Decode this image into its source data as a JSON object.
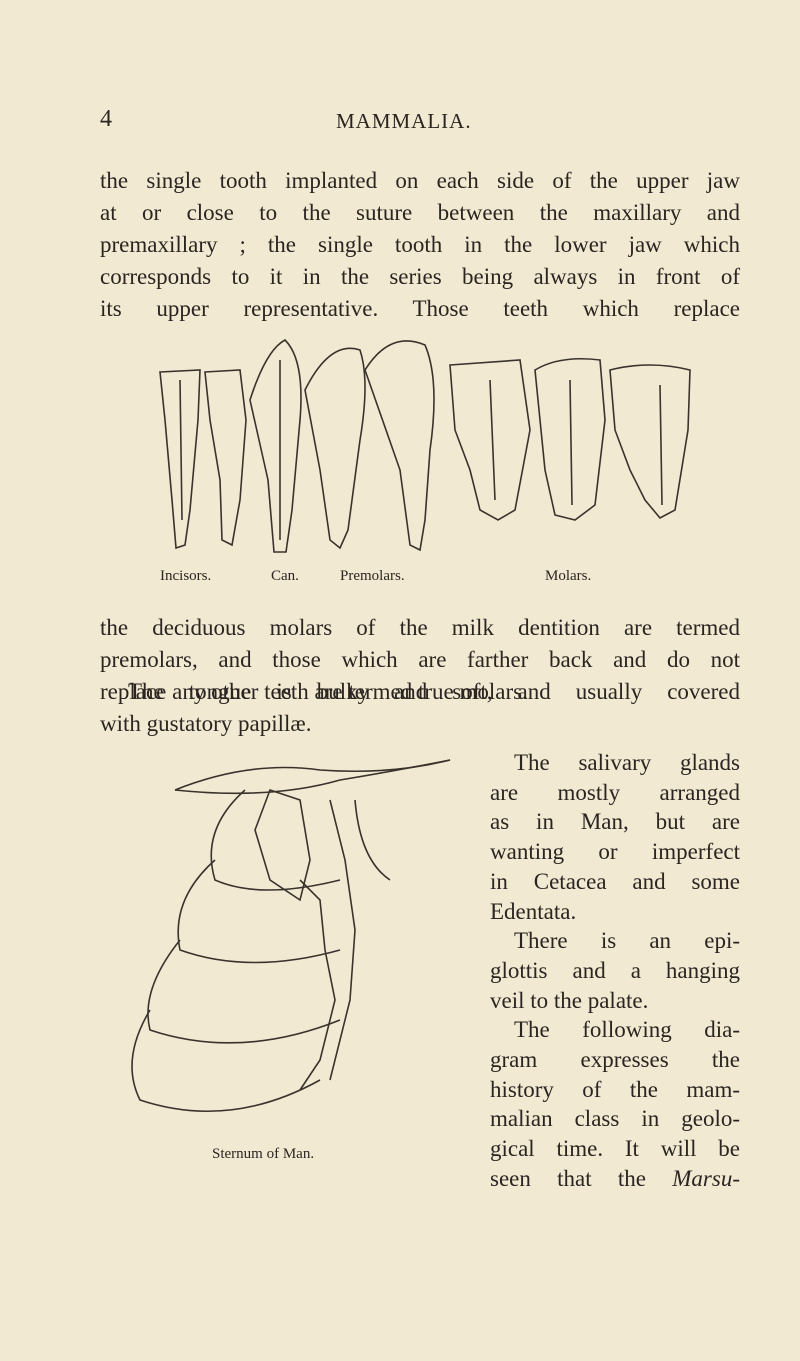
{
  "header": {
    "page_number": "4",
    "title": "MAMMALIA."
  },
  "paragraphs": [
    {
      "lines": [
        "the single tooth implanted on each side of the upper jaw",
        "at or close to the suture between the maxillary and",
        "premaxillary ; the single tooth in the lower jaw which",
        "corresponds to it in the series being always in front of",
        "its upper representative. Those teeth which replace"
      ]
    },
    {
      "lines": [
        "the deciduous molars of the milk dentition are termed",
        "premolars, and those which are farther back and do not",
        "replace any other teeth are termed true molars."
      ]
    },
    {
      "lines": [
        "The tongue is bulky and soft, and usually covered",
        "with gustatory papillæ."
      ]
    }
  ],
  "figure_teeth": {
    "captions": [
      "Incisors.",
      "Can.",
      "Premolars.",
      "Molars."
    ]
  },
  "right_column": {
    "lines": [
      "The salivary glands",
      "are mostly arranged",
      "as in Man, but are",
      "wanting or imperfect",
      "in Cetacea and some",
      "Edentata.",
      "There is an epi-",
      "glottis and a hanging",
      "veil to the palate.",
      "The following dia-",
      "gram expresses the",
      "history of the mam-",
      "malian class in geolo-",
      "gical time. It will be"
    ],
    "last_line": {
      "text": "seen that the",
      "italic": "Marsu-"
    }
  },
  "figure_sternum": {
    "caption": "Sternum of Man."
  }
}
